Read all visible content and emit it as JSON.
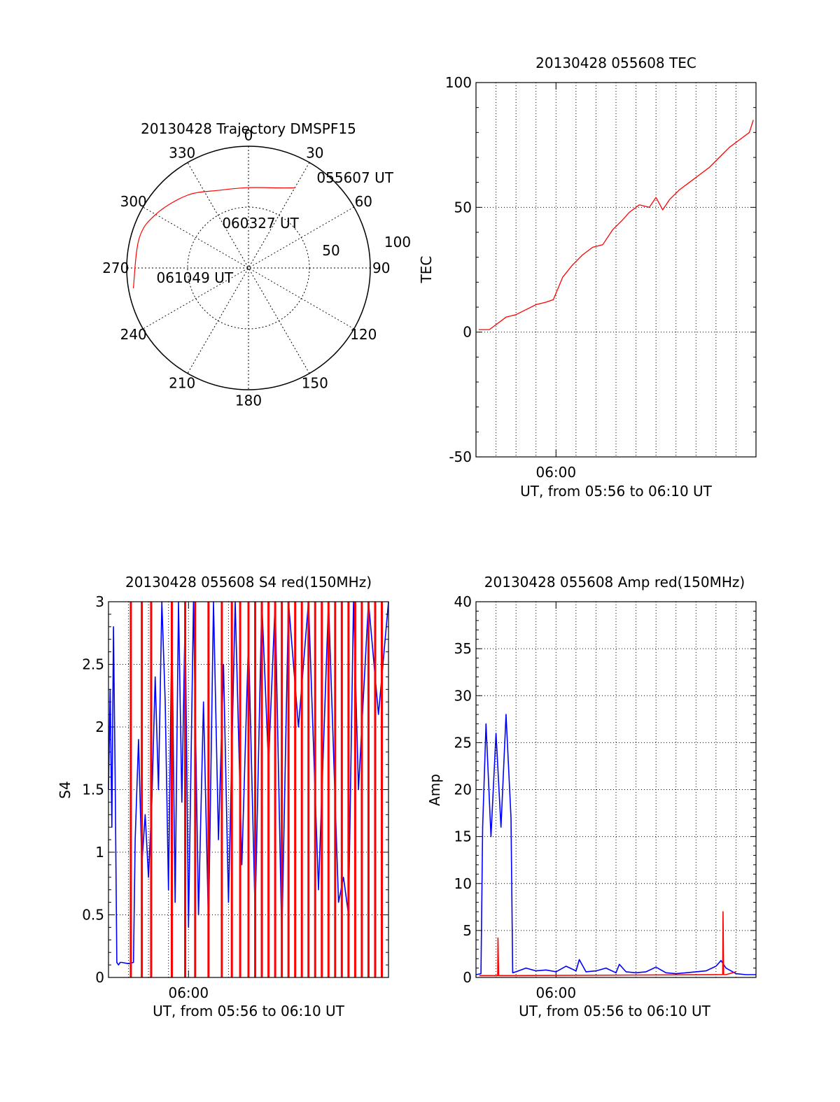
{
  "chart_data": [
    {
      "id": "trajectory",
      "type": "polar",
      "title": "20130428 Trajectory DMSPF15",
      "azimuth_labels": [
        "0",
        "30",
        "60",
        "90",
        "120",
        "150",
        "180",
        "210",
        "240",
        "270",
        "300",
        "330"
      ],
      "radius_labels": [
        "50",
        "100"
      ],
      "radius_max": 100,
      "track": {
        "color": "#ff0000",
        "points": [
          {
            "az": 30,
            "r": 76
          },
          {
            "az": 20,
            "r": 70
          },
          {
            "az": 0,
            "r": 66
          },
          {
            "az": 340,
            "r": 68
          },
          {
            "az": 320,
            "r": 78
          },
          {
            "az": 300,
            "r": 88
          },
          {
            "az": 285,
            "r": 93
          },
          {
            "az": 260,
            "r": 96
          }
        ]
      },
      "annotations": [
        {
          "text": "055607 UT",
          "az": 37,
          "r": 93
        },
        {
          "text": "060327 UT",
          "az": 15,
          "r": 38
        },
        {
          "text": "061049 UT",
          "az": 264,
          "r": 76
        }
      ]
    },
    {
      "id": "tec",
      "type": "line",
      "title": "20130428 055608 TEC",
      "xlabel": "UT, from 05:56 to 06:10 UT",
      "ylabel": "TEC",
      "xlim": [
        "05:56",
        "06:10"
      ],
      "ylim": [
        -50,
        100
      ],
      "x_ticks": [
        {
          "at": "06:00",
          "label": "06:00"
        }
      ],
      "y_ticks": [
        "-50",
        "0",
        "50",
        "100"
      ],
      "grid": true,
      "series": [
        {
          "color": "#ff0000",
          "x": [
            "05:56:08",
            "05:56:40",
            "05:57:00",
            "05:57:30",
            "05:58:00",
            "05:58:30",
            "05:59:00",
            "05:59:30",
            "05:59:52",
            "06:00:20",
            "06:00:50",
            "06:01:20",
            "06:01:50",
            "06:02:20",
            "06:02:50",
            "06:03:20",
            "06:03:40",
            "06:04:10",
            "06:04:40",
            "06:05:00",
            "06:05:20",
            "06:05:40",
            "06:06:10",
            "06:06:40",
            "06:07:10",
            "06:07:40",
            "06:08:10",
            "06:08:40",
            "06:09:10",
            "06:09:40",
            "06:09:52"
          ],
          "y": [
            1,
            1,
            3,
            6,
            7,
            9,
            11,
            12,
            13,
            22,
            27,
            31,
            34,
            35,
            41,
            45,
            48,
            51,
            50,
            54,
            49,
            53,
            57,
            60,
            63,
            66,
            70,
            74,
            77,
            80,
            85
          ]
        }
      ]
    },
    {
      "id": "s4",
      "type": "line",
      "title": "20130428 055608 S4 red(150MHz)",
      "xlabel": "UT, from 05:56 to 06:10 UT",
      "ylabel": "S4",
      "xlim": [
        "05:56",
        "06:10"
      ],
      "ylim": [
        0,
        3
      ],
      "x_ticks": [
        {
          "at": "06:00",
          "label": "06:00"
        }
      ],
      "y_ticks": [
        "0",
        "0.5",
        "1",
        "1.5",
        "2",
        "2.5",
        "3"
      ],
      "grid": true,
      "series": [
        {
          "color": "#0000ff",
          "x": [
            "05:56:00",
            "05:56:05",
            "05:56:10",
            "05:56:15",
            "05:56:20",
            "05:56:25",
            "05:56:30",
            "05:56:35",
            "05:56:40",
            "05:57:00",
            "05:57:15",
            "05:57:20",
            "05:57:30",
            "05:57:40",
            "05:57:50",
            "05:58:00",
            "05:58:10",
            "05:58:20",
            "05:58:30",
            "05:58:40",
            "05:58:50",
            "05:59:00",
            "05:59:10",
            "05:59:20",
            "05:59:30",
            "05:59:40",
            "05:59:50",
            "06:00:00",
            "06:00:15",
            "06:00:30",
            "06:00:45",
            "06:01:00",
            "06:01:15",
            "06:01:30",
            "06:01:45",
            "06:02:00",
            "06:02:20",
            "06:02:40",
            "06:03:00",
            "06:03:20",
            "06:03:40",
            "06:04:00",
            "06:04:20",
            "06:04:40",
            "06:05:00",
            "06:05:30",
            "06:06:00",
            "06:06:30",
            "06:07:00",
            "06:07:30",
            "06:07:45",
            "06:08:00",
            "06:08:15",
            "06:08:30",
            "06:09:00",
            "06:09:30",
            "06:10:00"
          ],
          "y": [
            1.5,
            2.3,
            1.2,
            2.8,
            1.6,
            0.12,
            0.1,
            0.12,
            0.12,
            0.11,
            0.12,
            1.1,
            1.9,
            0.9,
            1.3,
            0.8,
            1.4,
            2.4,
            1.5,
            3.0,
            2.2,
            0.7,
            2.8,
            0.6,
            3.0,
            1.4,
            2.9,
            0.4,
            3.0,
            0.5,
            2.2,
            0.4,
            3.0,
            1.1,
            2.5,
            0.6,
            3.0,
            0.9,
            2.7,
            0.5,
            3.0,
            1.7,
            3.0,
            0.3,
            3.0,
            2.0,
            3.0,
            0.7,
            3.0,
            0.6,
            0.8,
            0.5,
            3.0,
            1.5,
            3.0,
            2.1,
            3.0
          ]
        },
        {
          "color": "#ff0000",
          "x": [
            "05:57:07",
            "05:57:40",
            "05:58:08",
            "05:59:10",
            "05:59:50",
            "06:00:20",
            "06:01:00",
            "06:01:40",
            "06:02:10",
            "06:02:35",
            "06:03:00",
            "06:03:20",
            "06:03:40",
            "06:04:00",
            "06:04:20",
            "06:04:40",
            "06:05:00",
            "06:05:20",
            "06:05:40",
            "06:06:00",
            "06:06:20",
            "06:06:40",
            "06:07:00",
            "06:07:20",
            "06:07:40",
            "06:08:00",
            "06:08:20",
            "06:08:40",
            "06:09:00",
            "06:09:20",
            "06:09:40"
          ],
          "y": [
            3,
            3,
            3,
            3,
            3,
            3,
            3,
            3,
            3,
            3,
            3,
            3,
            3,
            3,
            3,
            3,
            3,
            3,
            3,
            3,
            3,
            3,
            3,
            3,
            3,
            3,
            3,
            3,
            3,
            3,
            3
          ]
        }
      ]
    },
    {
      "id": "amp",
      "type": "line",
      "title": "20130428 055608 Amp red(150MHz)",
      "xlabel": "UT, from 05:56 to 06:10 UT",
      "ylabel": "Amp",
      "xlim": [
        "05:56",
        "06:10"
      ],
      "ylim": [
        0,
        40
      ],
      "x_ticks": [
        {
          "at": "06:00",
          "label": "06:00"
        }
      ],
      "y_ticks": [
        "0",
        "5",
        "10",
        "15",
        "20",
        "25",
        "30",
        "35",
        "40"
      ],
      "grid": true,
      "series": [
        {
          "color": "#0000ff",
          "x": [
            "05:56:00",
            "05:56:15",
            "05:56:20",
            "05:56:30",
            "05:56:45",
            "05:57:00",
            "05:57:15",
            "05:57:30",
            "05:57:45",
            "05:57:50",
            "05:58:00",
            "05:58:30",
            "05:59:00",
            "05:59:30",
            "06:00:00",
            "06:00:30",
            "06:01:00",
            "06:01:10",
            "06:01:30",
            "06:02:00",
            "06:02:30",
            "06:03:00",
            "06:03:10",
            "06:03:30",
            "06:04:00",
            "06:04:30",
            "06:05:00",
            "06:05:30",
            "06:06:00",
            "06:06:30",
            "06:07:00",
            "06:07:30",
            "06:08:00",
            "06:08:15",
            "06:08:30",
            "06:09:00",
            "06:09:30",
            "06:10:00"
          ],
          "y": [
            0.3,
            0.4,
            16,
            27,
            15,
            26,
            16,
            28,
            17,
            0.5,
            0.6,
            1.0,
            0.7,
            0.8,
            0.6,
            1.2,
            0.7,
            1.9,
            0.6,
            0.7,
            1.0,
            0.5,
            1.4,
            0.6,
            0.5,
            0.6,
            1.1,
            0.5,
            0.4,
            0.5,
            0.6,
            0.7,
            1.2,
            1.8,
            1.0,
            0.4,
            0.3,
            0.3
          ]
        },
        {
          "color": "#ff0000",
          "x": [
            "05:56:10",
            "05:57:05",
            "05:57:06",
            "05:57:08",
            "05:58:00",
            "06:08:20",
            "06:08:21",
            "06:08:23",
            "06:08:30",
            "06:09:00"
          ],
          "y": [
            0.2,
            0.2,
            4.2,
            0.2,
            0.2,
            0.3,
            7,
            0.3,
            0.3,
            0.6
          ]
        }
      ]
    }
  ]
}
